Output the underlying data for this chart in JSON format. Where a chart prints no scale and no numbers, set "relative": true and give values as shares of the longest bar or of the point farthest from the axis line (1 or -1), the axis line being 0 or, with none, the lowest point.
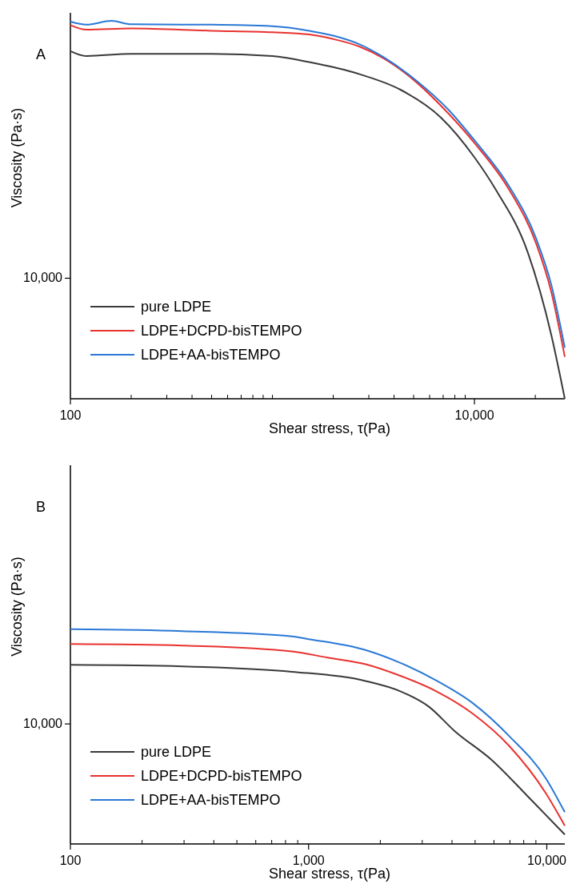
{
  "chart_data": [
    {
      "type": "line",
      "relative": true,
      "xlabel": "Shear stress, τ(Pa)",
      "ylabel": "Viscosity (Pa·s)",
      "annotations": [
        "A",
        "10,000"
      ],
      "log": "x",
      "legend": "bottom left",
      "xlim": [
        100,
        28000
      ],
      "xticks": [
        100,
        {
          "value": 200,
          "label": null
        },
        {
          "value": 300,
          "label": null
        },
        {
          "value": 400,
          "label": null
        },
        {
          "value": 500,
          "label": null
        },
        {
          "value": 600,
          "label": null
        },
        {
          "value": 700,
          "label": null
        },
        {
          "value": 800,
          "label": null
        },
        {
          "value": 900,
          "label": null
        },
        {
          "value": 1000,
          "label": null
        },
        {
          "value": 2000,
          "label": null
        },
        {
          "value": 3000,
          "label": null
        },
        {
          "value": 4000,
          "label": null
        },
        {
          "value": 5000,
          "label": null
        },
        {
          "value": 6000,
          "label": null
        },
        {
          "value": 7000,
          "label": null
        },
        {
          "value": 8000,
          "label": null
        },
        {
          "value": 9000,
          "label": null
        },
        {
          "value": 10000,
          "label": "10,000"
        },
        {
          "value": 20000,
          "label": null
        }
      ],
      "series": [
        {
          "name": "pure LDPE",
          "color": "#3a3a3a",
          "x": [
            100,
            120,
            200,
            500,
            1000,
            1520,
            2700,
            4300,
            6800,
            10000,
            12800,
            18400,
            24000,
            28000
          ],
          "values": [
            0.92,
            0.907,
            0.913,
            0.913,
            0.907,
            0.891,
            0.859,
            0.818,
            0.745,
            0.639,
            0.552,
            0.386,
            0.169,
            0
          ]
        },
        {
          "name": "LDPE+DCPD-bisTEMPO",
          "color": "#e8322f",
          "x": [
            100,
            120,
            200,
            500,
            1000,
            1520,
            2000,
            2700,
            3550,
            5100,
            7400,
            10000,
            14900,
            20200,
            24000,
            28000
          ],
          "values": [
            0.989,
            0.977,
            0.98,
            0.974,
            0.97,
            0.964,
            0.952,
            0.932,
            0.901,
            0.84,
            0.756,
            0.677,
            0.552,
            0.411,
            0.283,
            0.111
          ]
        },
        {
          "name": "LDPE+AA-bisTEMPO",
          "color": "#2a78d6",
          "x": [
            100,
            120,
            160,
            200,
            500,
            1000,
            1520,
            2000,
            2700,
            3550,
            5100,
            7400,
            10000,
            14900,
            20200,
            24000,
            28000
          ],
          "values": [
            0.998,
            0.99,
            1,
            0.991,
            0.99,
            0.986,
            0.974,
            0.961,
            0.938,
            0.904,
            0.844,
            0.766,
            0.684,
            0.561,
            0.424,
            0.302,
            0.135
          ]
        }
      ]
    },
    {
      "type": "line",
      "relative": true,
      "xlabel": "Shear stress, τ(Pa)",
      "ylabel": "Viscosity (Pa·s)",
      "annotations": [
        "B",
        "10,000"
      ],
      "log": "x",
      "legend": "bottom left",
      "xlim": [
        100,
        11900
      ],
      "xticks": [
        100,
        {
          "value": 200,
          "label": null
        },
        {
          "value": 300,
          "label": null
        },
        {
          "value": 400,
          "label": null
        },
        {
          "value": 500,
          "label": null
        },
        {
          "value": 600,
          "label": null
        },
        {
          "value": 700,
          "label": null
        },
        {
          "value": 800,
          "label": null
        },
        {
          "value": 900,
          "label": null
        },
        {
          "value": 1000,
          "label": "1,000"
        },
        {
          "value": 2000,
          "label": null
        },
        {
          "value": 3000,
          "label": null
        },
        {
          "value": 4000,
          "label": null
        },
        {
          "value": 5000,
          "label": null
        },
        {
          "value": 6000,
          "label": null
        },
        {
          "value": 7000,
          "label": null
        },
        {
          "value": 8000,
          "label": null
        },
        {
          "value": 9000,
          "label": null
        },
        {
          "value": 10000,
          "label": "10,000"
        }
      ],
      "series": [
        {
          "name": "pure LDPE",
          "color": "#3a3a3a",
          "x": [
            100,
            295,
            850,
            1720,
            2440,
            3200,
            4100,
            5900,
            8300,
            11900
          ],
          "values": [
            0.834,
            0.827,
            0.802,
            0.76,
            0.71,
            0.639,
            0.526,
            0.389,
            0.223,
            0.044
          ]
        },
        {
          "name": "LDPE+DCPD-bisTEMPO",
          "color": "#e8322f",
          "x": [
            100,
            295,
            850,
            1200,
            1720,
            2440,
            3450,
            4900,
            6960,
            9900,
            11900
          ],
          "values": [
            0.931,
            0.924,
            0.897,
            0.868,
            0.838,
            0.782,
            0.71,
            0.606,
            0.456,
            0.237,
            0.085
          ]
        },
        {
          "name": "LDPE+AA-bisTEMPO",
          "color": "#2a78d6",
          "x": [
            100,
            295,
            850,
            1000,
            1720,
            2440,
            3450,
            4900,
            6960,
            9900,
            11900
          ],
          "values": [
            1,
            0.991,
            0.967,
            0.954,
            0.904,
            0.842,
            0.76,
            0.655,
            0.502,
            0.306,
            0.148
          ]
        }
      ]
    }
  ]
}
